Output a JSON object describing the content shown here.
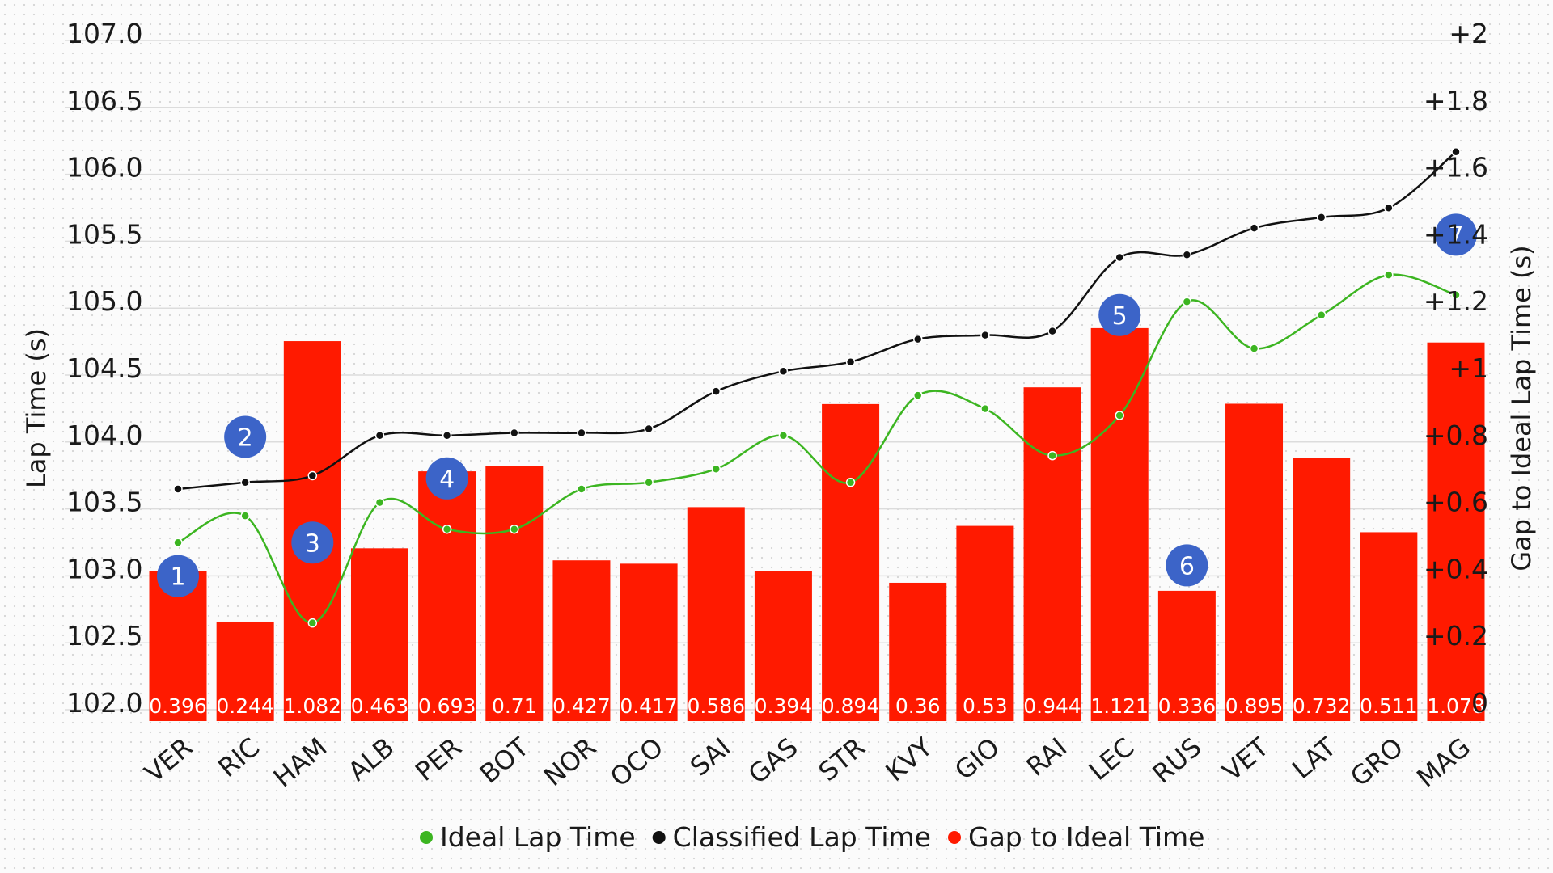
{
  "chart_data": {
    "type": "bar",
    "categories": [
      "VER",
      "RIC",
      "HAM",
      "ALB",
      "PER",
      "BOT",
      "NOR",
      "OCO",
      "SAI",
      "GAS",
      "STR",
      "KVY",
      "GIO",
      "RAI",
      "LEC",
      "RUS",
      "VET",
      "LAT",
      "GRO",
      "MAG"
    ],
    "series": [
      {
        "name": "Gap to Ideal Time",
        "type": "bar",
        "axis": "right",
        "color": "#ff1a00",
        "values": [
          0.396,
          0.244,
          1.082,
          0.463,
          0.693,
          0.71,
          0.427,
          0.417,
          0.586,
          0.394,
          0.894,
          0.36,
          0.53,
          0.944,
          1.121,
          0.336,
          0.895,
          0.732,
          0.511,
          1.078
        ],
        "labels": [
          "0.396",
          "0.244",
          "1.082",
          "0.463",
          "0.693",
          "0.71",
          "0.427",
          "0.417",
          "0.586",
          "0.394",
          "0.894",
          "0.36",
          "0.53",
          "0.944",
          "1.121",
          "0.336",
          "0.895",
          "0.732",
          "0.511",
          "1.078"
        ]
      },
      {
        "name": "Ideal Lap Time",
        "type": "line",
        "axis": "left",
        "color": "#3cb521",
        "values": [
          103.2,
          103.4,
          102.6,
          103.5,
          103.3,
          103.3,
          103.6,
          103.65,
          103.75,
          104.0,
          103.65,
          104.3,
          104.2,
          103.85,
          104.15,
          105.0,
          104.65,
          104.9,
          105.2,
          105.05
        ]
      },
      {
        "name": "Classified Lap Time",
        "type": "line",
        "axis": "left",
        "color": "#111111",
        "values": [
          103.6,
          103.65,
          103.7,
          104.0,
          104.0,
          104.02,
          104.02,
          104.05,
          104.33,
          104.48,
          104.55,
          104.72,
          104.75,
          104.78,
          105.33,
          105.35,
          105.55,
          105.63,
          105.7,
          106.12
        ]
      }
    ],
    "y_left": {
      "label": "Lap Time (s)",
      "range": [
        102.0,
        107.0
      ],
      "ticks": [
        "102.0",
        "102.5",
        "103.0",
        "103.5",
        "104.0",
        "104.5",
        "105.0",
        "105.5",
        "106.0",
        "106.5",
        "107.0"
      ]
    },
    "y_right": {
      "label": "Gap to Ideal Lap Time (s)",
      "range": [
        0,
        2
      ],
      "ticks": [
        "0",
        "+0.2",
        "+0.4",
        "+0.6",
        "+0.8",
        "+1",
        "+1.2",
        "+1.4",
        "+1.6",
        "+1.8",
        "+2"
      ]
    },
    "annotations": [
      {
        "text": "1",
        "category": "VER",
        "y": 102.95
      },
      {
        "text": "2",
        "category": "RIC",
        "y": 103.99
      },
      {
        "text": "3",
        "category": "HAM",
        "y": 103.2
      },
      {
        "text": "4",
        "category": "PER",
        "y": 103.68
      },
      {
        "text": "5",
        "category": "LEC",
        "y": 104.9
      },
      {
        "text": "6",
        "category": "RUS",
        "y": 103.03
      },
      {
        "text": "7",
        "category": "MAG",
        "y": 105.5
      }
    ],
    "annotation_color": "#3c64c8",
    "legend_position": "bottom-center",
    "grid": true
  }
}
